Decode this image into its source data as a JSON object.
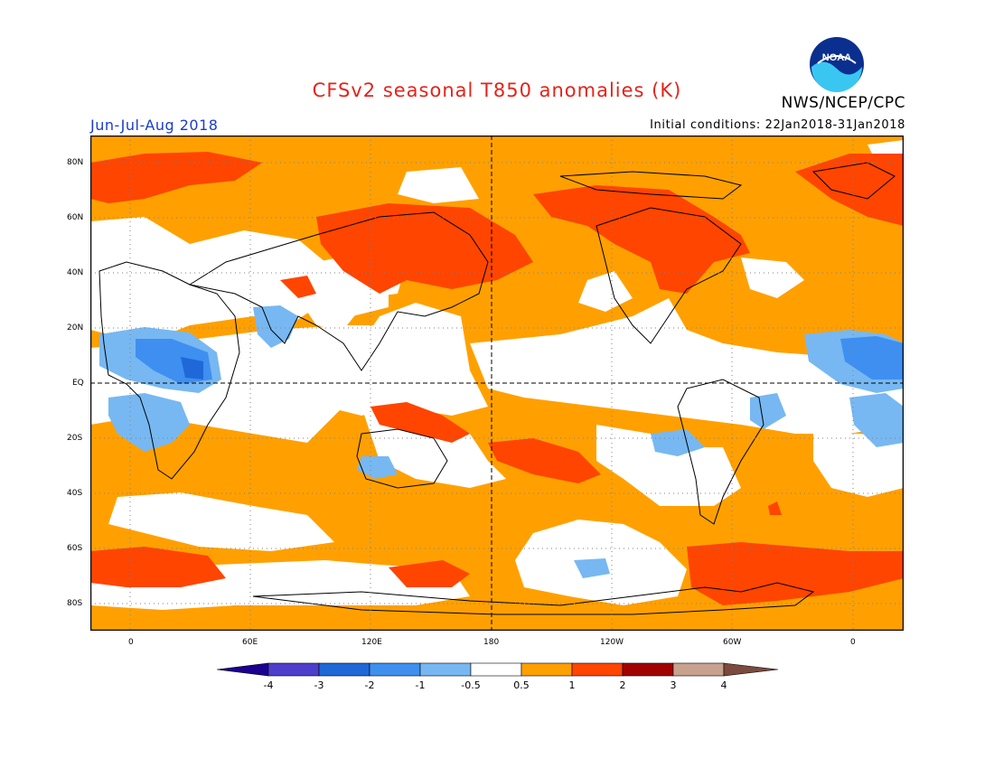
{
  "header": {
    "title": "CFSv2 seasonal T850 anomalies (K)",
    "agency": "NWS/NCEP/CPC",
    "season": "Jun-Jul-Aug 2018",
    "initial_conditions": "Initial conditions: 22Jan2018-31Jan2018",
    "logo_text": "NOAA"
  },
  "axes": {
    "lat_labels": [
      "80N",
      "60N",
      "40N",
      "20N",
      "EQ",
      "20S",
      "40S",
      "60S",
      "80S"
    ],
    "lon_labels": [
      "0",
      "60E",
      "120E",
      "180",
      "120W",
      "60W",
      "0"
    ]
  },
  "colorbar": {
    "labels": [
      "-4",
      "-3",
      "-2",
      "-1",
      "-0.5",
      "0.5",
      "1",
      "2",
      "3",
      "4"
    ],
    "colors": [
      "#1c0091",
      "#4d3fcc",
      "#1f68d8",
      "#3e8ff0",
      "#77b8f2",
      "#ffffff",
      "#ffa000",
      "#ff4500",
      "#a30000",
      "#c8a28f",
      "#7a4b3e"
    ]
  },
  "palette": {
    "orange": "#ffa000",
    "red": "#ff4500",
    "blue1": "#77b8f2",
    "blue2": "#3e8ff0",
    "blue3": "#1f68d8"
  }
}
